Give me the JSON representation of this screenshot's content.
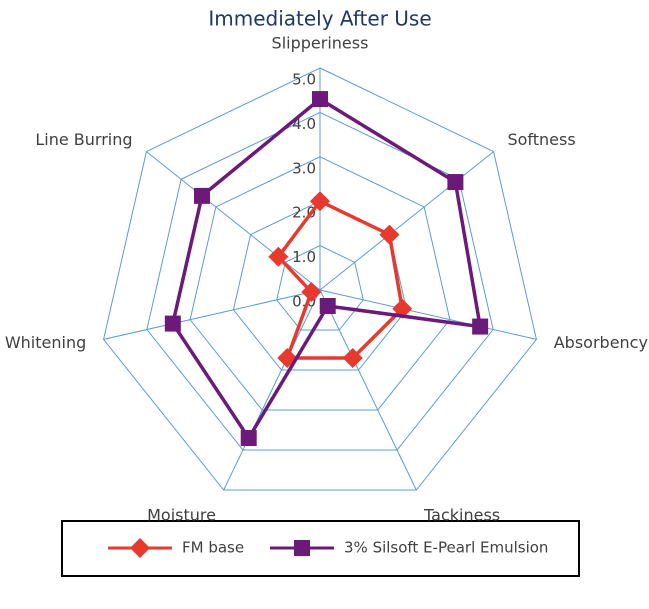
{
  "chart_data": {
    "type": "radar",
    "title": "Immediately After Use",
    "categories": [
      "Slipperiness",
      "Softness",
      "Absorbency",
      "Tackiness",
      "Moisture",
      "Whitening",
      "Line Burring"
    ],
    "series": [
      {
        "name": "FM base",
        "color": "#e8392f",
        "marker": "diamond",
        "values": [
          2.0,
          2.0,
          1.9,
          1.7,
          1.7,
          0.2,
          1.2
        ]
      },
      {
        "name": "3% Silsoft E-Pearl Emulsion",
        "color": "#6b1a7a",
        "marker": "square",
        "values": [
          4.3,
          3.9,
          3.7,
          0.4,
          3.7,
          3.4,
          3.4
        ]
      }
    ],
    "ylim": [
      0,
      5
    ],
    "yticks": [
      {
        "value": 0,
        "label": "0.0"
      },
      {
        "value": 1,
        "label": "1.0"
      },
      {
        "value": 2,
        "label": "2.0"
      },
      {
        "value": 3,
        "label": "3.0"
      },
      {
        "value": 4,
        "label": "4.0"
      },
      {
        "value": 5,
        "label": "5.0"
      }
    ],
    "grid": true,
    "legend": "bottom"
  }
}
